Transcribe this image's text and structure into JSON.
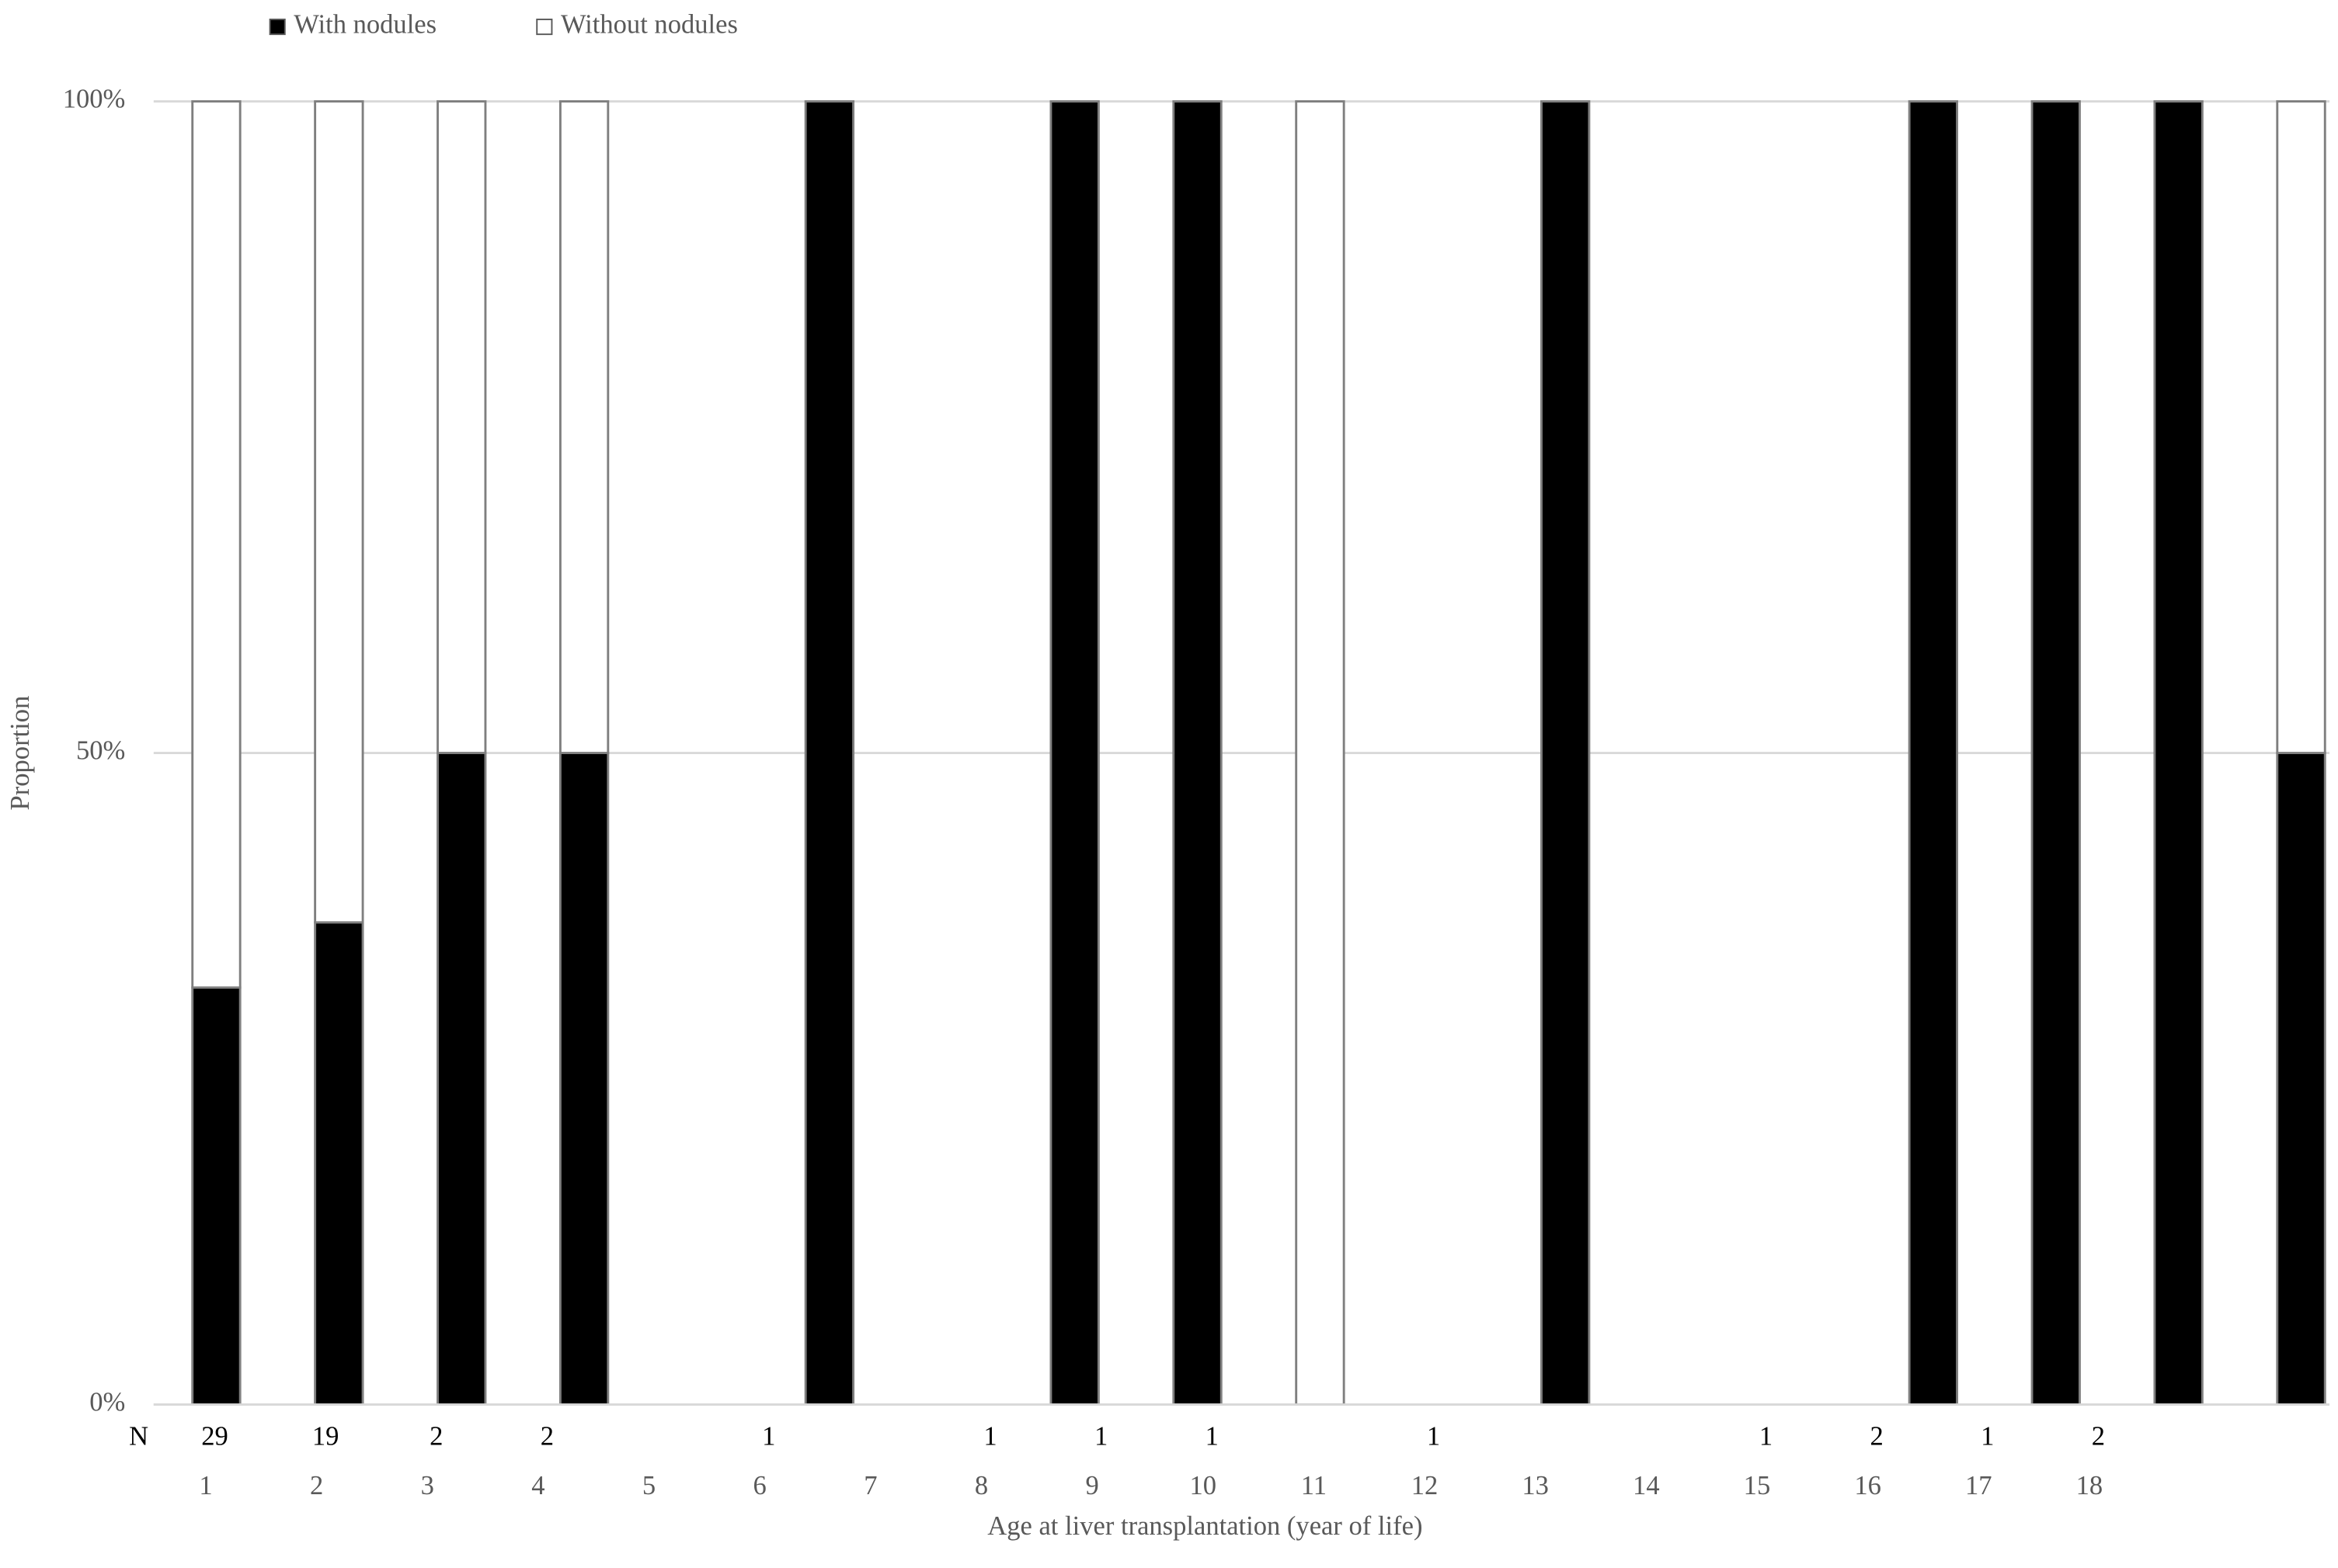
{
  "chart_data": {
    "type": "stacked_percent_bar",
    "x_label": "Age at liver transplantation (year of life)",
    "y_label": "Proportion",
    "n_label": "N",
    "categories": [
      "1",
      "2",
      "3",
      "4",
      "5",
      "6",
      "7",
      "8",
      "9",
      "10",
      "11",
      "12",
      "13",
      "14",
      "15",
      "16",
      "17",
      "18"
    ],
    "n_values": [
      29,
      19,
      2,
      2,
      null,
      1,
      null,
      1,
      1,
      1,
      null,
      1,
      null,
      null,
      1,
      2,
      1,
      2
    ],
    "series": [
      {
        "name": "With nodules",
        "color": "#000000",
        "values": [
          32,
          37,
          50,
          50,
          null,
          100,
          null,
          100,
          100,
          0,
          null,
          100,
          null,
          null,
          100,
          100,
          100,
          50
        ]
      },
      {
        "name": "Without nodules",
        "color": "#ffffff",
        "values": [
          68,
          63,
          50,
          50,
          null,
          0,
          null,
          0,
          0,
          100,
          null,
          0,
          null,
          null,
          0,
          0,
          0,
          50
        ]
      }
    ],
    "ylim": [
      0,
      100
    ],
    "yticks": [
      {
        "value": 0,
        "label": "0%"
      },
      {
        "value": 50,
        "label": "50%"
      },
      {
        "value": 100,
        "label": "100%"
      }
    ],
    "grid": true,
    "legend": "top-left"
  }
}
